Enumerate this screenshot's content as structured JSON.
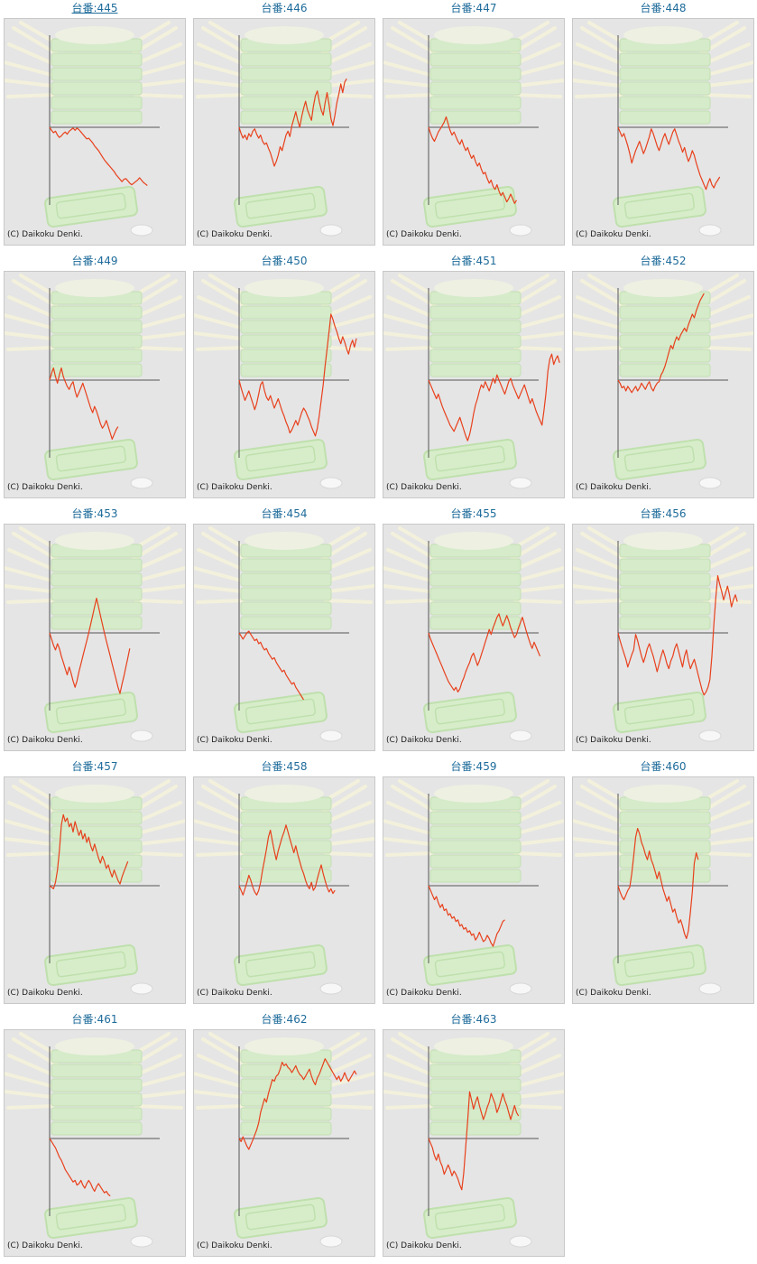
{
  "copyright": "(C) Daikoku Denki.",
  "colors": {
    "title": "#1d6b9a",
    "line": "#e8401c",
    "background": "#e5e5e5",
    "axis": "#555555",
    "decor_green": "#cfe9c4"
  },
  "icons": [
    "pachinko-tray-decor",
    "light-rays-decor"
  ],
  "machines": [
    {
      "label": "台番:445",
      "series": [
        0,
        -4,
        -7,
        -5,
        -10,
        -13,
        -11,
        -8,
        -6,
        -9,
        -5,
        -3,
        -1,
        -4,
        -1,
        -3,
        -6,
        -9,
        -12,
        -15,
        -14,
        -17,
        -20,
        -24,
        -27,
        -30,
        -34,
        -38,
        -42,
        -45,
        -48,
        -51,
        -54,
        -57,
        -61,
        -64,
        -67,
        -70,
        -67,
        -66,
        -69,
        -72,
        -74,
        -72,
        -70,
        -68,
        -65,
        -68,
        -71,
        -73,
        -75
      ]
    },
    {
      "label": "台番:446",
      "series": [
        0,
        -8,
        -14,
        -10,
        -16,
        -8,
        -12,
        -5,
        -2,
        -9,
        -14,
        -10,
        -18,
        -22,
        -20,
        -27,
        -33,
        -41,
        -50,
        -44,
        -36,
        -25,
        -30,
        -20,
        -10,
        -5,
        -12,
        2,
        10,
        18,
        8,
        0,
        12,
        22,
        30,
        20,
        14,
        8,
        24,
        36,
        42,
        30,
        20,
        14,
        28,
        40,
        26,
        10,
        2,
        14,
        28,
        38,
        50,
        40,
        52,
        56
      ]
    },
    {
      "label": "台番:447",
      "series": [
        0,
        -8,
        -14,
        -18,
        -12,
        -6,
        -2,
        2,
        6,
        12,
        4,
        -4,
        -10,
        -6,
        -12,
        -18,
        -22,
        -16,
        -24,
        -30,
        -26,
        -34,
        -40,
        -36,
        -44,
        -50,
        -46,
        -54,
        -60,
        -58,
        -66,
        -72,
        -68,
        -76,
        -80,
        -74,
        -82,
        -88,
        -84,
        -90,
        -96,
        -92,
        -86,
        -92,
        -98,
        -94
      ]
    },
    {
      "label": "台番:448",
      "series": [
        0,
        -6,
        -12,
        -8,
        -16,
        -24,
        -34,
        -46,
        -38,
        -30,
        -24,
        -18,
        -26,
        -34,
        -28,
        -20,
        -12,
        -2,
        -8,
        -16,
        -24,
        -30,
        -22,
        -14,
        -8,
        -16,
        -22,
        -14,
        -6,
        -2,
        -10,
        -18,
        -24,
        -32,
        -26,
        -36,
        -44,
        -38,
        -30,
        -36,
        -46,
        -54,
        -62,
        -68,
        -74,
        -80,
        -72,
        -66,
        -74,
        -78,
        -72,
        -68,
        -64
      ]
    },
    {
      "label": "台番:449",
      "series": [
        0,
        8,
        14,
        4,
        -4,
        6,
        14,
        4,
        -2,
        -8,
        -12,
        -6,
        -2,
        -14,
        -22,
        -16,
        -10,
        -4,
        -12,
        -20,
        -28,
        -36,
        -42,
        -34,
        -40,
        -48,
        -56,
        -62,
        -58,
        -52,
        -60,
        -68,
        -76,
        -70,
        -64,
        -60
      ]
    },
    {
      "label": "台番:450",
      "series": [
        0,
        -10,
        -18,
        -26,
        -20,
        -14,
        -22,
        -30,
        -38,
        -30,
        -18,
        -6,
        -2,
        -14,
        -22,
        -26,
        -20,
        -28,
        -36,
        -30,
        -24,
        -32,
        -40,
        -46,
        -54,
        -60,
        -68,
        -64,
        -58,
        -52,
        -58,
        -50,
        -42,
        -36,
        -40,
        -46,
        -52,
        -60,
        -66,
        -72,
        -62,
        -46,
        -26,
        -6,
        16,
        36,
        56,
        76,
        70,
        62,
        56,
        48,
        42,
        50,
        44,
        36,
        30,
        40,
        46,
        38,
        48
      ]
    },
    {
      "label": "台番:451",
      "series": [
        0,
        -6,
        -12,
        -18,
        -24,
        -18,
        -26,
        -34,
        -40,
        -46,
        -52,
        -58,
        -62,
        -66,
        -60,
        -54,
        -48,
        -56,
        -64,
        -72,
        -78,
        -70,
        -58,
        -44,
        -32,
        -24,
        -14,
        -6,
        -10,
        -2,
        -8,
        -14,
        -6,
        2,
        -4,
        6,
        0,
        -6,
        -12,
        -18,
        -10,
        -2,
        2,
        -6,
        -12,
        -18,
        -24,
        -18,
        -12,
        -6,
        -14,
        -22,
        -30,
        -24,
        -32,
        -40,
        -46,
        -52,
        -58,
        -40,
        -18,
        10,
        24,
        30,
        18,
        24,
        28,
        20
      ]
    },
    {
      "label": "台番:452",
      "series": [
        0,
        -4,
        -10,
        -8,
        -14,
        -8,
        -12,
        -16,
        -12,
        -8,
        -14,
        -10,
        -4,
        -8,
        -12,
        -6,
        -2,
        -10,
        -14,
        -8,
        -4,
        -2,
        6,
        10,
        16,
        24,
        32,
        40,
        36,
        44,
        50,
        46,
        52,
        56,
        60,
        56,
        64,
        70,
        76,
        72,
        80,
        86,
        92,
        96,
        100
      ]
    },
    {
      "label": "台番:453",
      "series": [
        0,
        -8,
        -16,
        -22,
        -14,
        -20,
        -30,
        -38,
        -46,
        -54,
        -44,
        -52,
        -62,
        -70,
        -62,
        -50,
        -40,
        -30,
        -20,
        -10,
        0,
        10,
        20,
        30,
        40,
        30,
        20,
        10,
        0,
        -10,
        -20,
        -30,
        -40,
        -50,
        -60,
        -70,
        -78,
        -66,
        -56,
        -44,
        -32,
        -20
      ]
    },
    {
      "label": "台番:454",
      "series": [
        0,
        -4,
        -8,
        -4,
        0,
        2,
        -2,
        -6,
        -10,
        -8,
        -14,
        -12,
        -18,
        -22,
        -20,
        -26,
        -30,
        -34,
        -32,
        -38,
        -42,
        -46,
        -50,
        -48,
        -54,
        -58,
        -62,
        -66,
        -64,
        -70,
        -74,
        -78,
        -82,
        -86
      ]
    },
    {
      "label": "台番:455",
      "series": [
        0,
        -8,
        -14,
        -20,
        -26,
        -32,
        -38,
        -44,
        -50,
        -56,
        -62,
        -66,
        -70,
        -74,
        -70,
        -76,
        -72,
        -64,
        -58,
        -50,
        -44,
        -38,
        -30,
        -26,
        -34,
        -42,
        -36,
        -28,
        -20,
        -12,
        -4,
        4,
        -2,
        6,
        12,
        18,
        22,
        14,
        8,
        14,
        20,
        14,
        6,
        0,
        -6,
        -2,
        6,
        12,
        18,
        10,
        2,
        -6,
        -14,
        -20,
        -12,
        -18,
        -24,
        -30
      ]
    },
    {
      "label": "台番:456",
      "series": [
        0,
        -10,
        -18,
        -26,
        -34,
        -44,
        -36,
        -28,
        -22,
        -2,
        -10,
        -20,
        -30,
        -38,
        -30,
        -20,
        -14,
        -22,
        -30,
        -40,
        -50,
        -40,
        -30,
        -22,
        -30,
        -40,
        -46,
        -36,
        -30,
        -20,
        -14,
        -24,
        -34,
        -44,
        -30,
        -22,
        -36,
        -46,
        -40,
        -34,
        -44,
        -54,
        -64,
        -74,
        -80,
        -76,
        -70,
        -60,
        -30,
        10,
        40,
        66,
        56,
        48,
        38,
        46,
        54,
        44,
        30,
        38,
        44,
        36
      ]
    },
    {
      "label": "台番:457",
      "series": [
        0,
        -2,
        -4,
        4,
        18,
        40,
        70,
        82,
        74,
        78,
        68,
        72,
        62,
        74,
        66,
        58,
        64,
        54,
        60,
        50,
        56,
        46,
        40,
        48,
        40,
        32,
        26,
        34,
        28,
        20,
        24,
        16,
        10,
        18,
        12,
        6,
        2,
        10,
        16,
        22,
        28
      ]
    },
    {
      "label": "台番:458",
      "series": [
        0,
        -6,
        -12,
        -4,
        4,
        12,
        6,
        -2,
        -8,
        -12,
        -6,
        4,
        18,
        30,
        42,
        56,
        64,
        52,
        40,
        30,
        40,
        48,
        56,
        62,
        70,
        62,
        54,
        46,
        38,
        46,
        36,
        28,
        20,
        14,
        6,
        0,
        -4,
        4,
        -6,
        -2,
        8,
        16,
        24,
        14,
        6,
        -2,
        -8,
        -4,
        -10,
        -6
      ]
    },
    {
      "label": "台番:459",
      "series": [
        0,
        -6,
        -12,
        -18,
        -14,
        -22,
        -28,
        -24,
        -32,
        -30,
        -38,
        -36,
        -42,
        -40,
        -46,
        -44,
        -52,
        -50,
        -56,
        -54,
        -60,
        -58,
        -64,
        -62,
        -70,
        -66,
        -60,
        -66,
        -72,
        -70,
        -64,
        -68,
        -74,
        -78,
        -70,
        -62,
        -58,
        -52,
        -46,
        -44
      ]
    },
    {
      "label": "台番:460",
      "series": [
        0,
        -8,
        -14,
        -18,
        -12,
        -6,
        -2,
        14,
        34,
        56,
        66,
        60,
        50,
        44,
        36,
        30,
        40,
        30,
        24,
        16,
        8,
        16,
        6,
        -4,
        -12,
        -20,
        -14,
        -24,
        -34,
        -30,
        -40,
        -48,
        -44,
        -52,
        -62,
        -68,
        -58,
        -34,
        -8,
        26,
        38,
        30
      ]
    },
    {
      "label": "台番:461",
      "series": [
        0,
        -4,
        -8,
        -12,
        -18,
        -24,
        -28,
        -34,
        -40,
        -44,
        -48,
        -52,
        -56,
        -54,
        -60,
        -58,
        -54,
        -60,
        -64,
        -58,
        -54,
        -58,
        -64,
        -68,
        -62,
        -58,
        -62,
        -66,
        -70,
        -68,
        -72,
        -74
      ]
    },
    {
      "label": "台番:462",
      "series": [
        0,
        -4,
        2,
        -4,
        -10,
        -14,
        -8,
        -2,
        4,
        10,
        18,
        30,
        38,
        46,
        42,
        52,
        60,
        68,
        66,
        72,
        74,
        80,
        88,
        84,
        86,
        82,
        80,
        76,
        80,
        84,
        78,
        74,
        72,
        68,
        72,
        76,
        80,
        72,
        66,
        62,
        70,
        74,
        80,
        86,
        92,
        88,
        84,
        80,
        76,
        72,
        68,
        72,
        66,
        70,
        76,
        70,
        66,
        70,
        74,
        78,
        74
      ]
    },
    {
      "label": "台番:463",
      "series": [
        0,
        -6,
        -12,
        -22,
        -28,
        -20,
        -30,
        -36,
        -46,
        -40,
        -34,
        -40,
        -48,
        -42,
        -46,
        -52,
        -60,
        -66,
        -44,
        -10,
        20,
        54,
        44,
        34,
        42,
        48,
        38,
        30,
        22,
        28,
        36,
        42,
        52,
        46,
        40,
        30,
        36,
        44,
        52,
        44,
        38,
        30,
        22,
        30,
        38,
        30,
        26
      ]
    }
  ]
}
